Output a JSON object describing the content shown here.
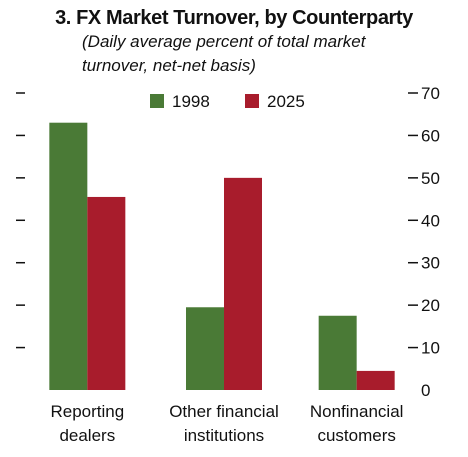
{
  "chart_data": {
    "type": "bar",
    "title": "3. FX Market Turnover, by Counterparty",
    "subtitle_lines": [
      "(Daily average percent of total market",
      "turnover, net-net basis)"
    ],
    "categories": [
      [
        "Reporting",
        "dealers"
      ],
      [
        "Other financial",
        "institutions"
      ],
      [
        "Nonfinancial",
        "customers"
      ]
    ],
    "series": [
      {
        "name": "1998",
        "color": "#4a7a36",
        "values": [
          63,
          19.5,
          17.5
        ]
      },
      {
        "name": "2025",
        "color": "#a81c2c",
        "values": [
          45.5,
          50,
          4.5
        ]
      }
    ],
    "ylim": [
      0,
      70
    ],
    "yticks": [
      0,
      10,
      20,
      30,
      40,
      50,
      60,
      70
    ],
    "xlabel": "",
    "ylabel": "",
    "grid": false,
    "legend_position": "top-center"
  }
}
